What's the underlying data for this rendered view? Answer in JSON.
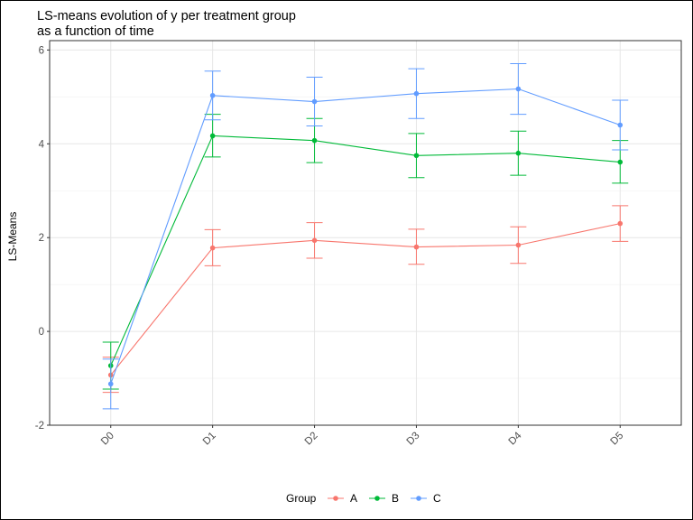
{
  "chart_data": {
    "type": "line",
    "title_lines": [
      "LS-means evolution of y per treatment group",
      "as a function of time"
    ],
    "xlabel": "",
    "ylabel": "LS-Means",
    "categories": [
      "D0",
      "D1",
      "D2",
      "D3",
      "D4",
      "D5"
    ],
    "yticks": [
      -2,
      0,
      2,
      4,
      6
    ],
    "ylim": [
      -2.0,
      6.2
    ],
    "grid": true,
    "error_bars": true,
    "legend": {
      "title": "Group",
      "position": "bottom"
    },
    "series": [
      {
        "name": "A",
        "color": "#F8766D",
        "values": [
          -0.93,
          1.78,
          1.94,
          1.8,
          1.84,
          2.3
        ],
        "lower": [
          -1.3,
          1.4,
          1.56,
          1.43,
          1.45,
          1.92
        ],
        "upper": [
          -0.55,
          2.17,
          2.32,
          2.18,
          2.23,
          2.68
        ]
      },
      {
        "name": "B",
        "color": "#00BA38",
        "values": [
          -0.73,
          4.17,
          4.07,
          3.75,
          3.8,
          3.61
        ],
        "lower": [
          -1.23,
          3.72,
          3.6,
          3.28,
          3.33,
          3.16
        ],
        "upper": [
          -0.23,
          4.63,
          4.54,
          4.22,
          4.27,
          4.07
        ]
      },
      {
        "name": "C",
        "color": "#619CFF",
        "values": [
          -1.12,
          5.03,
          4.9,
          5.07,
          5.17,
          4.4
        ],
        "lower": [
          -1.65,
          4.51,
          4.38,
          4.54,
          4.63,
          3.87
        ],
        "upper": [
          -0.59,
          5.55,
          5.42,
          5.6,
          5.71,
          4.93
        ]
      }
    ]
  }
}
